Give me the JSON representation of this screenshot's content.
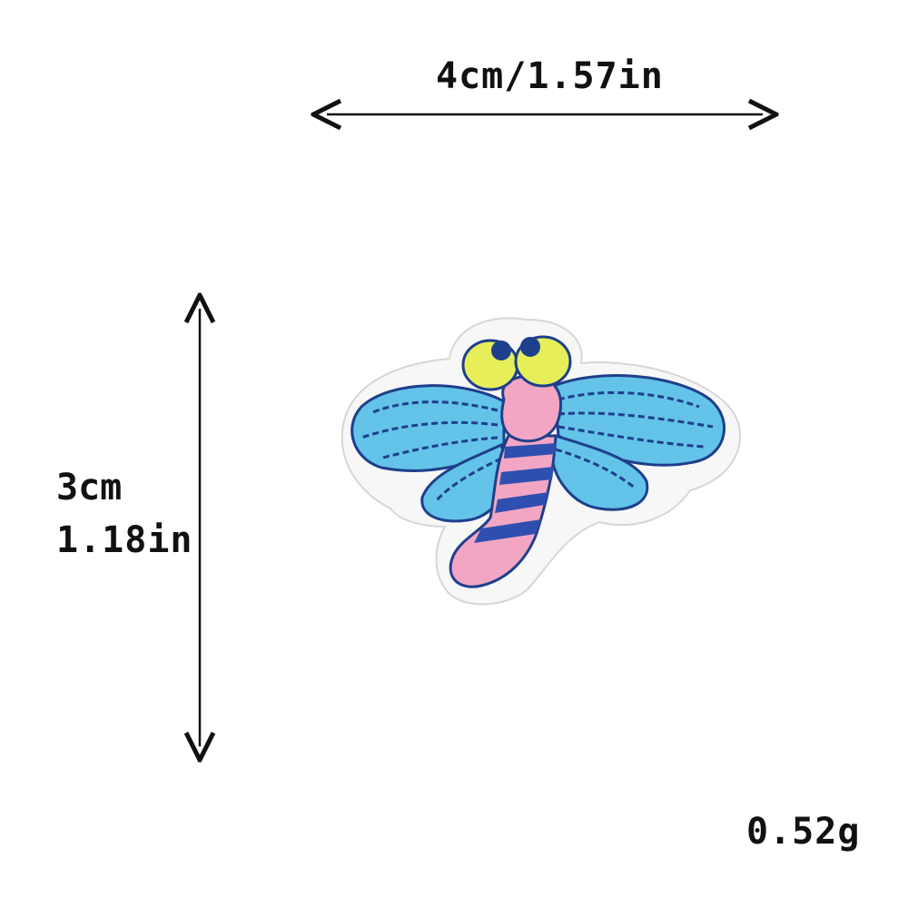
{
  "dimensions": {
    "width_label": "4cm/1.57in",
    "height_cm": "3cm",
    "height_in": "1.18in"
  },
  "weight_label": "0.52g",
  "colors": {
    "wing": "#63c3e8",
    "stitch": "#1e3f8c",
    "body": "#f3a6c3",
    "eye": "#e6ef5a",
    "arrow": "#111111",
    "felt": "#f7f7f7"
  }
}
